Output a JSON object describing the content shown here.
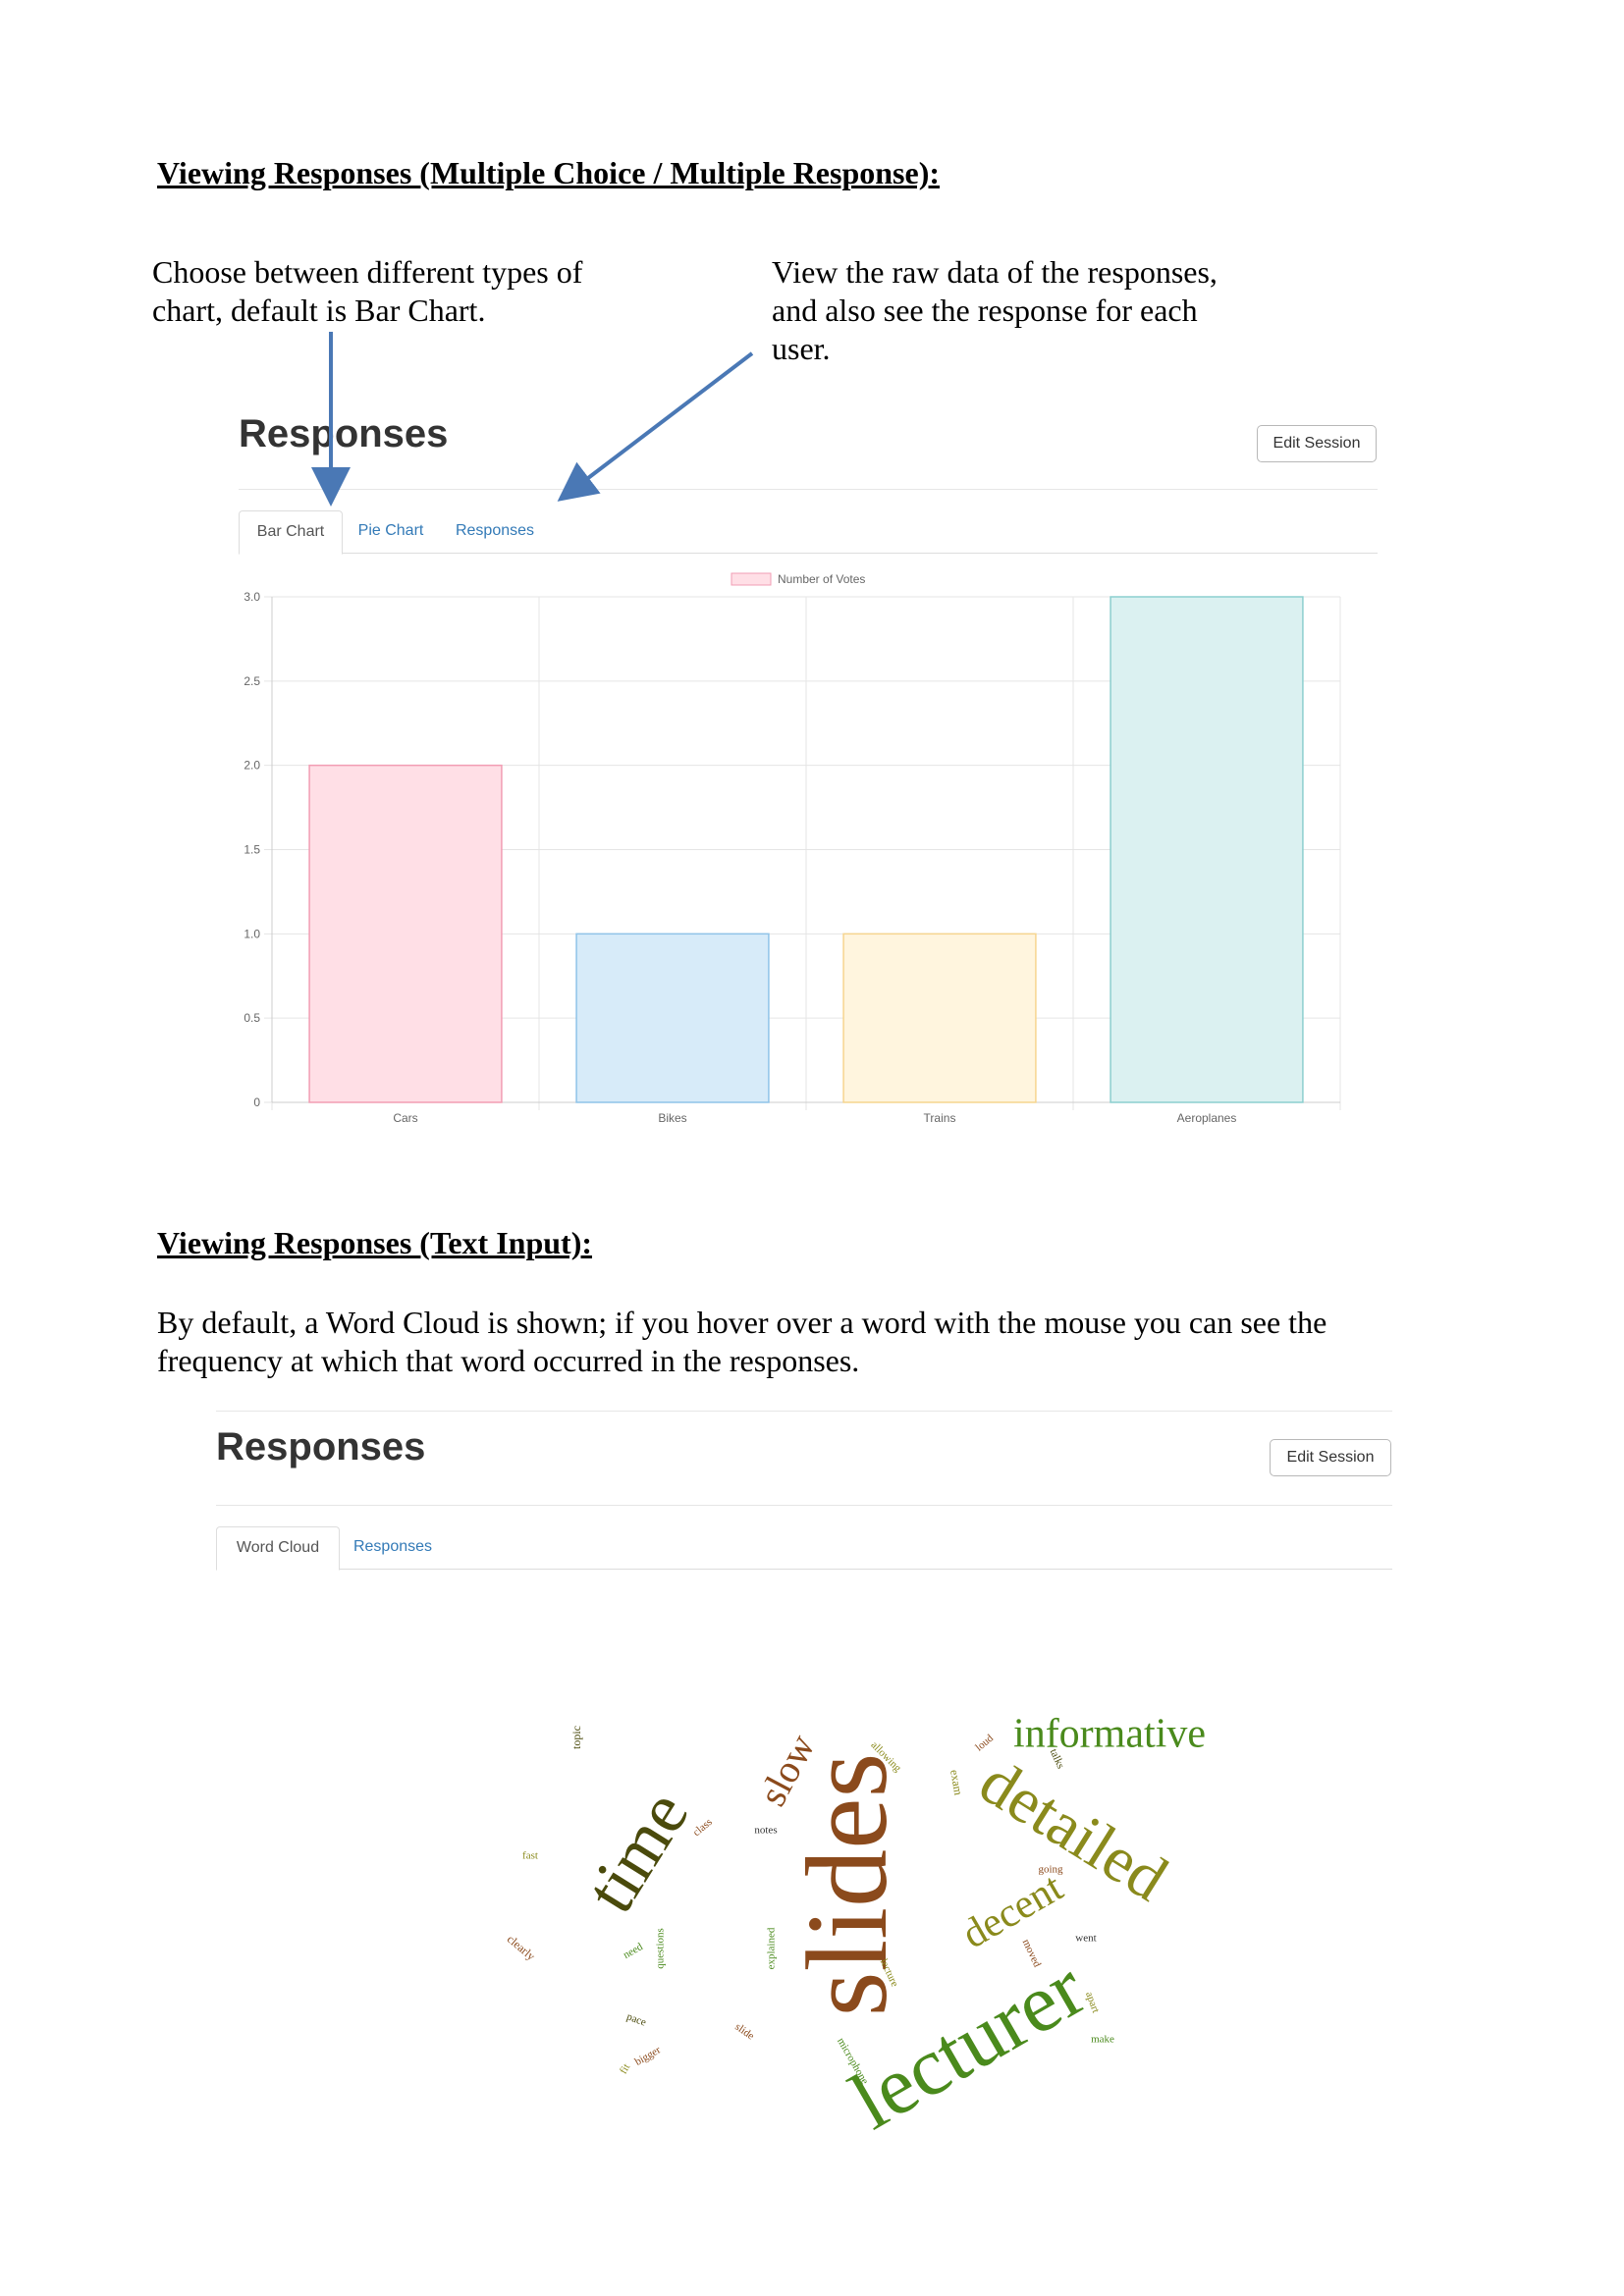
{
  "section1": {
    "heading": "Viewing Responses (Multiple Choice / Multiple Response):",
    "note_left": [
      "Choose between different types of",
      "chart, default is Bar Chart."
    ],
    "note_right": [
      "View the raw data of the responses,",
      "and also see the response for each",
      "user."
    ]
  },
  "screen1": {
    "title": "Responses",
    "edit_button": "Edit Session",
    "tabs": [
      "Bar Chart",
      "Pie Chart",
      "Responses"
    ],
    "active_tab": "Bar Chart"
  },
  "chart_data": {
    "type": "bar",
    "categories": [
      "Cars",
      "Bikes",
      "Trains",
      "Aeroplanes"
    ],
    "series": [
      {
        "name": "Number of Votes",
        "values": [
          2,
          1,
          1,
          3
        ]
      }
    ],
    "yticks": [
      "0",
      "0.5",
      "1.0",
      "1.5",
      "2.0",
      "2.5",
      "3.0"
    ],
    "ylim": [
      0,
      3
    ],
    "grid": true,
    "legend": "top-center",
    "colors": {
      "fill": [
        "#ffdfe6",
        "#d7ebf9",
        "#fff5de",
        "#dbf1f1"
      ],
      "stroke": [
        "#f29db4",
        "#8fc3e8",
        "#f6d58f",
        "#8ccfcf"
      ]
    }
  },
  "section2": {
    "heading": "Viewing Responses (Text Input):",
    "note": [
      "By default, a Word Cloud is shown; if you hover over a word with the mouse you can see the",
      "frequency at which that word occurred in the responses."
    ]
  },
  "screen2": {
    "title": "Responses",
    "edit_button": "Edit Session",
    "tabs": [
      "Word Cloud",
      "Responses"
    ],
    "active_tab": "Word Cloud"
  },
  "word_cloud": {
    "words": [
      {
        "text": "slides",
        "color": "#8b4a1c"
      },
      {
        "text": "lecturer",
        "color": "#4a8a1c"
      },
      {
        "text": "detailed",
        "color": "#8a8a1c"
      },
      {
        "text": "time",
        "color": "#4a4a0c"
      },
      {
        "text": "informative",
        "color": "#4a8a1c"
      },
      {
        "text": "decent",
        "color": "#8a8a1c"
      },
      {
        "text": "slow",
        "color": "#8b4a1c"
      },
      {
        "text": "topic",
        "color": "#4a4a0c"
      },
      {
        "text": "allowing",
        "color": "#8a8a1c"
      },
      {
        "text": "loud",
        "color": "#8b4a1c"
      },
      {
        "text": "talks",
        "color": "#4a4a0c"
      },
      {
        "text": "exam",
        "color": "#8a8a1c"
      },
      {
        "text": "class",
        "color": "#8b4a1c"
      },
      {
        "text": "notes",
        "color": "#333333"
      },
      {
        "text": "fast",
        "color": "#8a8a1c"
      },
      {
        "text": "going",
        "color": "#8b4a1c"
      },
      {
        "text": "pace",
        "color": "#4a4a0c"
      },
      {
        "text": "went",
        "color": "#333333"
      },
      {
        "text": "clearly",
        "color": "#8b4a1c"
      },
      {
        "text": "need",
        "color": "#4a8a1c"
      },
      {
        "text": "questions",
        "color": "#4a8a1c"
      },
      {
        "text": "explained",
        "color": "#4a8a1c"
      },
      {
        "text": "lecture",
        "color": "#8a8a1c"
      },
      {
        "text": "moved",
        "color": "#8b4a1c"
      },
      {
        "text": "apart",
        "color": "#8a8a1c"
      },
      {
        "text": "microphone",
        "color": "#4a8a1c"
      },
      {
        "text": "make",
        "color": "#4a8a1c"
      },
      {
        "text": "slide",
        "color": "#8b4a1c"
      },
      {
        "text": "bigger",
        "color": "#8b4a1c"
      },
      {
        "text": "fit",
        "color": "#8a8a1c"
      }
    ]
  },
  "icons": {
    "arrow_color": "#4a78b5"
  }
}
